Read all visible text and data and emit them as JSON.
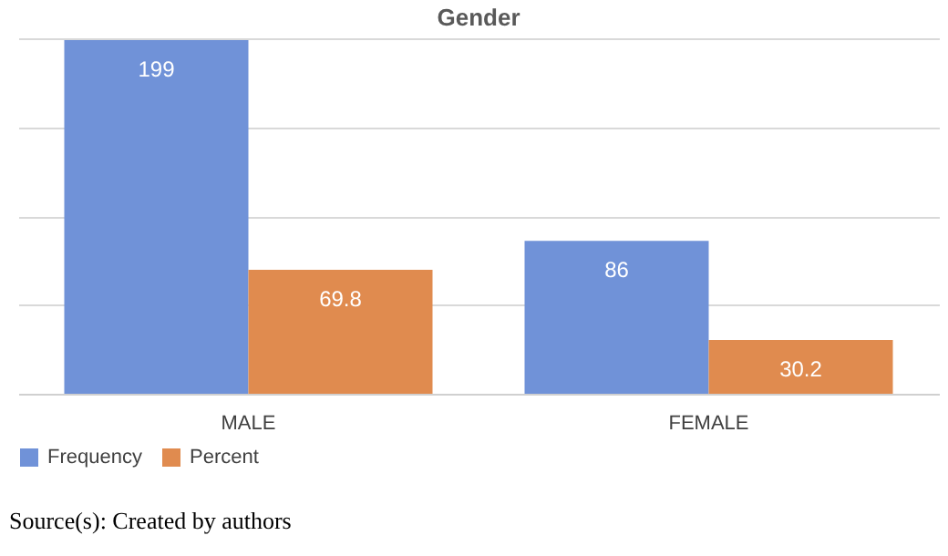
{
  "chart_data": {
    "type": "bar",
    "title": "Gender",
    "categories": [
      "MALE",
      "FEMALE"
    ],
    "series": [
      {
        "name": "Frequency",
        "color": "#7092d8",
        "values": [
          199,
          86
        ]
      },
      {
        "name": "Percent",
        "color": "#e08b4f",
        "values": [
          69.8,
          30.2
        ]
      }
    ],
    "grid": "y",
    "tick_labels": "x",
    "legend": "bottom",
    "data_labels": true,
    "annotations": [
      "Source(s): Created by authors"
    ]
  }
}
